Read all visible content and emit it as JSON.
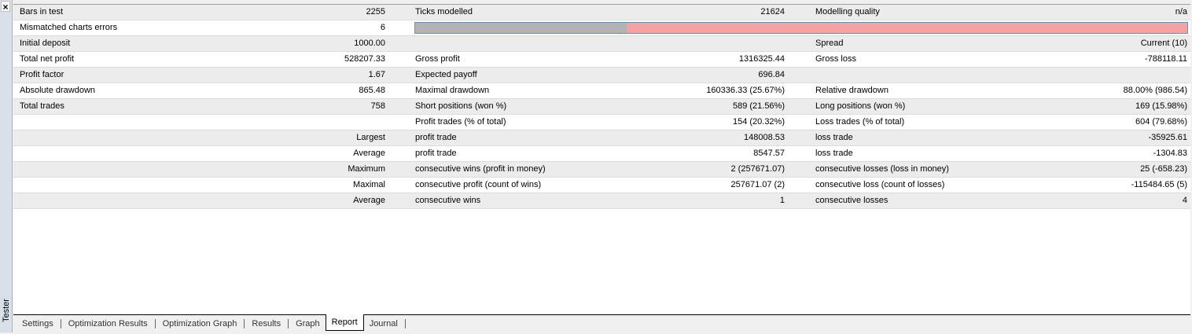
{
  "panel": {
    "close": "×",
    "side_label": "Tester"
  },
  "report": {
    "rows": [
      [
        "Bars in test",
        "2255",
        "Ticks modelled",
        "21624",
        "Modelling quality",
        "n/a"
      ],
      [
        "Mismatched charts errors",
        "6",
        null,
        null,
        null,
        null
      ],
      [
        "Initial deposit",
        "1000.00",
        null,
        null,
        "Spread",
        "Current (10)"
      ],
      [
        "Total net profit",
        "528207.33",
        "Gross profit",
        "1316325.44",
        "Gross loss",
        "-788118.11"
      ],
      [
        "Profit factor",
        "1.67",
        "Expected payoff",
        "696.84",
        null,
        null
      ],
      [
        "Absolute drawdown",
        "865.48",
        "Maximal drawdown",
        "160336.33 (25.67%)",
        "Relative drawdown",
        "88.00% (986.54)"
      ],
      [
        "Total trades",
        "758",
        "Short positions (won %)",
        "589 (21.56%)",
        "Long positions (won %)",
        "169 (15.98%)"
      ],
      [
        null,
        null,
        "Profit trades (% of total)",
        "154 (20.32%)",
        "Loss trades (% of total)",
        "604 (79.68%)"
      ],
      [
        null,
        "Largest",
        "profit trade",
        "148008.53",
        "loss trade",
        "-35925.61"
      ],
      [
        null,
        "Average",
        "profit trade",
        "8547.57",
        "loss trade",
        "-1304.83"
      ],
      [
        null,
        "Maximum",
        "consecutive wins (profit in money)",
        "2 (257671.07)",
        "consecutive losses (loss in money)",
        "25 (-658.23)"
      ],
      [
        null,
        "Maximal",
        "consecutive profit (count of wins)",
        "257671.07 (2)",
        "consecutive loss (count of losses)",
        "-115484.65 (5)"
      ],
      [
        null,
        "Average",
        "consecutive wins",
        "1",
        "consecutive losses",
        "4"
      ]
    ]
  },
  "tabs": {
    "items": [
      "Settings",
      "Optimization Results",
      "Optimization Graph",
      "Results",
      "Graph",
      "Report",
      "Journal"
    ],
    "active": "Report"
  }
}
